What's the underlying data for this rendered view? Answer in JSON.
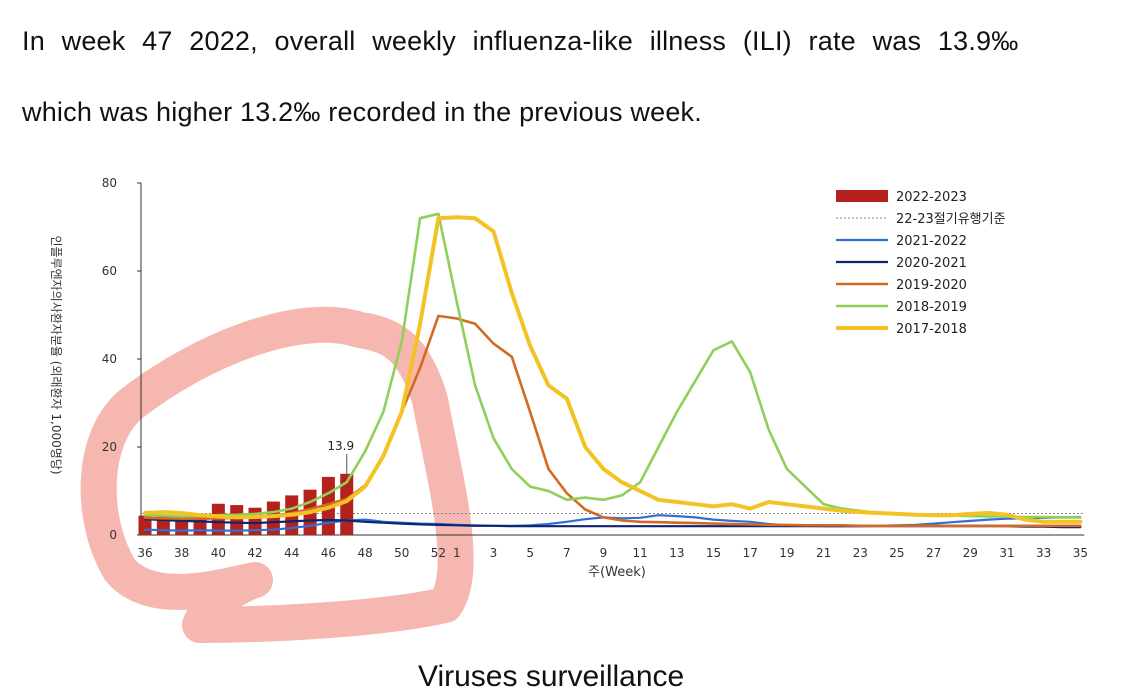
{
  "paragraph": {
    "line1": "In week 47 2022, overall weekly influenza-like illness (ILI) rate was 13.9‰",
    "line2": "which was higher 13.2‰  recorded in the previous week."
  },
  "footer": {
    "partial_text": "Viruses surveillance"
  },
  "colors": {
    "bar_2022_2023": "#b5211c",
    "threshold": "#888888",
    "s2021_2022": "#2e6fd8",
    "s2020_2021": "#0d2470",
    "s2019_2020": "#d46a22",
    "s2018_2019": "#8fcf5a",
    "s2017_2018": "#f3c325",
    "highlight": "#ef7b70"
  },
  "chart_data": {
    "type": "bar+line",
    "title": "",
    "xlabel": "주(Week)",
    "ylabel": "인플루엔자의사환자분율 (외래환자 1,000명당)",
    "ylim": [
      0,
      80
    ],
    "yticks": [
      0,
      20,
      40,
      60,
      80
    ],
    "x_weeks": [
      36,
      37,
      38,
      39,
      40,
      41,
      42,
      43,
      44,
      45,
      46,
      47,
      48,
      49,
      50,
      51,
      52,
      1,
      2,
      3,
      4,
      5,
      6,
      7,
      8,
      9,
      10,
      11,
      12,
      13,
      14,
      15,
      16,
      17,
      18,
      19,
      20,
      21,
      22,
      23,
      24,
      25,
      26,
      27,
      28,
      29,
      30,
      31,
      32,
      33,
      34,
      35
    ],
    "x_tick_labels": [
      "36",
      "38",
      "40",
      "42",
      "44",
      "46",
      "48",
      "50",
      "52",
      "1",
      "3",
      "5",
      "7",
      "9",
      "11",
      "13",
      "15",
      "17",
      "19",
      "21",
      "23",
      "25",
      "27",
      "29",
      "31",
      "33",
      "35"
    ],
    "annotation": "13.9",
    "threshold": {
      "name": "22-23절기유행기준",
      "value": 4.9
    },
    "bars": {
      "name": "2022-2023",
      "values": [
        4.4,
        4.3,
        4.2,
        4.2,
        7.1,
        6.8,
        6.2,
        7.6,
        9.0,
        10.3,
        13.2,
        13.9
      ]
    },
    "series": [
      {
        "name": "2021-2022",
        "key": "s2021_2022",
        "width": 2.2,
        "values": [
          1.2,
          1.1,
          1.0,
          1.1,
          1.0,
          1.0,
          1.1,
          1.2,
          1.6,
          2.1,
          2.8,
          3.3,
          3.5,
          3.0,
          2.8,
          2.6,
          2.5,
          2.3,
          2.2,
          2.1,
          2.1,
          2.2,
          2.5,
          3.0,
          3.6,
          4.0,
          3.8,
          3.9,
          4.5,
          4.3,
          4.0,
          3.5,
          3.2,
          3.0,
          2.5,
          2.2,
          2.1,
          2.0,
          2.0,
          2.0,
          2.1,
          2.2,
          2.3,
          2.6,
          2.9,
          3.2,
          3.5,
          3.7,
          3.8,
          3.9,
          4.0,
          4.1
        ]
      },
      {
        "name": "2020-2021",
        "key": "s2020_2021",
        "width": 2.2,
        "values": [
          3.6,
          3.4,
          3.2,
          3.1,
          2.9,
          2.8,
          2.7,
          2.9,
          3.1,
          3.3,
          3.4,
          3.3,
          3.0,
          2.8,
          2.6,
          2.4,
          2.3,
          2.2,
          2.1,
          2.1,
          2.0,
          2.0,
          2.0,
          2.0,
          2.0,
          2.0,
          2.0,
          2.0,
          2.0,
          2.0,
          2.0,
          2.0,
          2.0,
          2.0,
          2.0,
          2.0,
          2.0,
          2.0,
          2.0,
          2.0,
          2.0,
          2.0,
          2.0,
          2.0,
          2.0,
          2.0,
          2.0,
          2.0,
          1.9,
          1.9,
          1.8,
          1.8
        ]
      },
      {
        "name": "2019-2020",
        "key": "s2019_2020",
        "width": 2.6,
        "values": [
          3.9,
          3.8,
          3.7,
          3.7,
          3.8,
          3.9,
          4.1,
          4.4,
          5.0,
          5.9,
          7.0,
          8.2,
          11.3,
          18.0,
          28.0,
          38.0,
          49.8,
          49.2,
          48.0,
          43.5,
          40.5,
          28.0,
          15.0,
          9.5,
          5.8,
          4.0,
          3.3,
          3.0,
          2.9,
          2.8,
          2.7,
          2.6,
          2.5,
          2.4,
          2.3,
          2.3,
          2.2,
          2.2,
          2.2,
          2.1,
          2.1,
          2.1,
          2.1,
          2.1,
          2.1,
          2.1,
          2.1,
          2.1,
          2.1,
          2.1,
          2.1,
          2.1
        ]
      },
      {
        "name": "2018-2019",
        "key": "s2018_2019",
        "width": 2.6,
        "values": [
          4.5,
          4.4,
          4.2,
          4.3,
          4.5,
          4.6,
          4.8,
          5.2,
          6.0,
          7.5,
          9.5,
          12.0,
          19.0,
          28.0,
          44.0,
          72.0,
          73.0,
          53.0,
          34.0,
          22.0,
          15.0,
          11.0,
          10.0,
          8.0,
          8.5,
          8.0,
          9.0,
          12.0,
          20.0,
          28.0,
          35.0,
          42.0,
          44.0,
          37.0,
          24.0,
          15.0,
          11.0,
          7.0,
          6.0,
          5.5,
          5.0,
          4.8,
          4.6,
          4.5,
          4.4,
          4.3,
          4.2,
          4.2,
          4.1,
          4.1,
          4.0,
          4.0
        ]
      },
      {
        "name": "2017-2018",
        "key": "s2017_2018",
        "width": 4,
        "values": [
          5.0,
          5.2,
          5.0,
          4.5,
          4.2,
          4.0,
          4.1,
          4.3,
          4.6,
          5.2,
          6.2,
          7.7,
          11.0,
          18.0,
          28.0,
          48.0,
          72.0,
          72.2,
          72.0,
          69.0,
          55.0,
          43.0,
          34.0,
          31.0,
          20.0,
          15.0,
          12.0,
          10.0,
          8.0,
          7.5,
          7.0,
          6.5,
          7.0,
          6.0,
          7.5,
          7.0,
          6.5,
          6.0,
          5.5,
          5.2,
          5.0,
          4.8,
          4.6,
          4.5,
          4.5,
          4.8,
          5.0,
          4.6,
          3.5,
          3.0,
          3.0,
          3.0
        ]
      }
    ],
    "legend_position": "top-right",
    "legend": [
      "2022-2023",
      "22-23절기유행기준",
      "2021-2022",
      "2020-2021",
      "2019-2020",
      "2018-2019",
      "2017-2018"
    ]
  }
}
